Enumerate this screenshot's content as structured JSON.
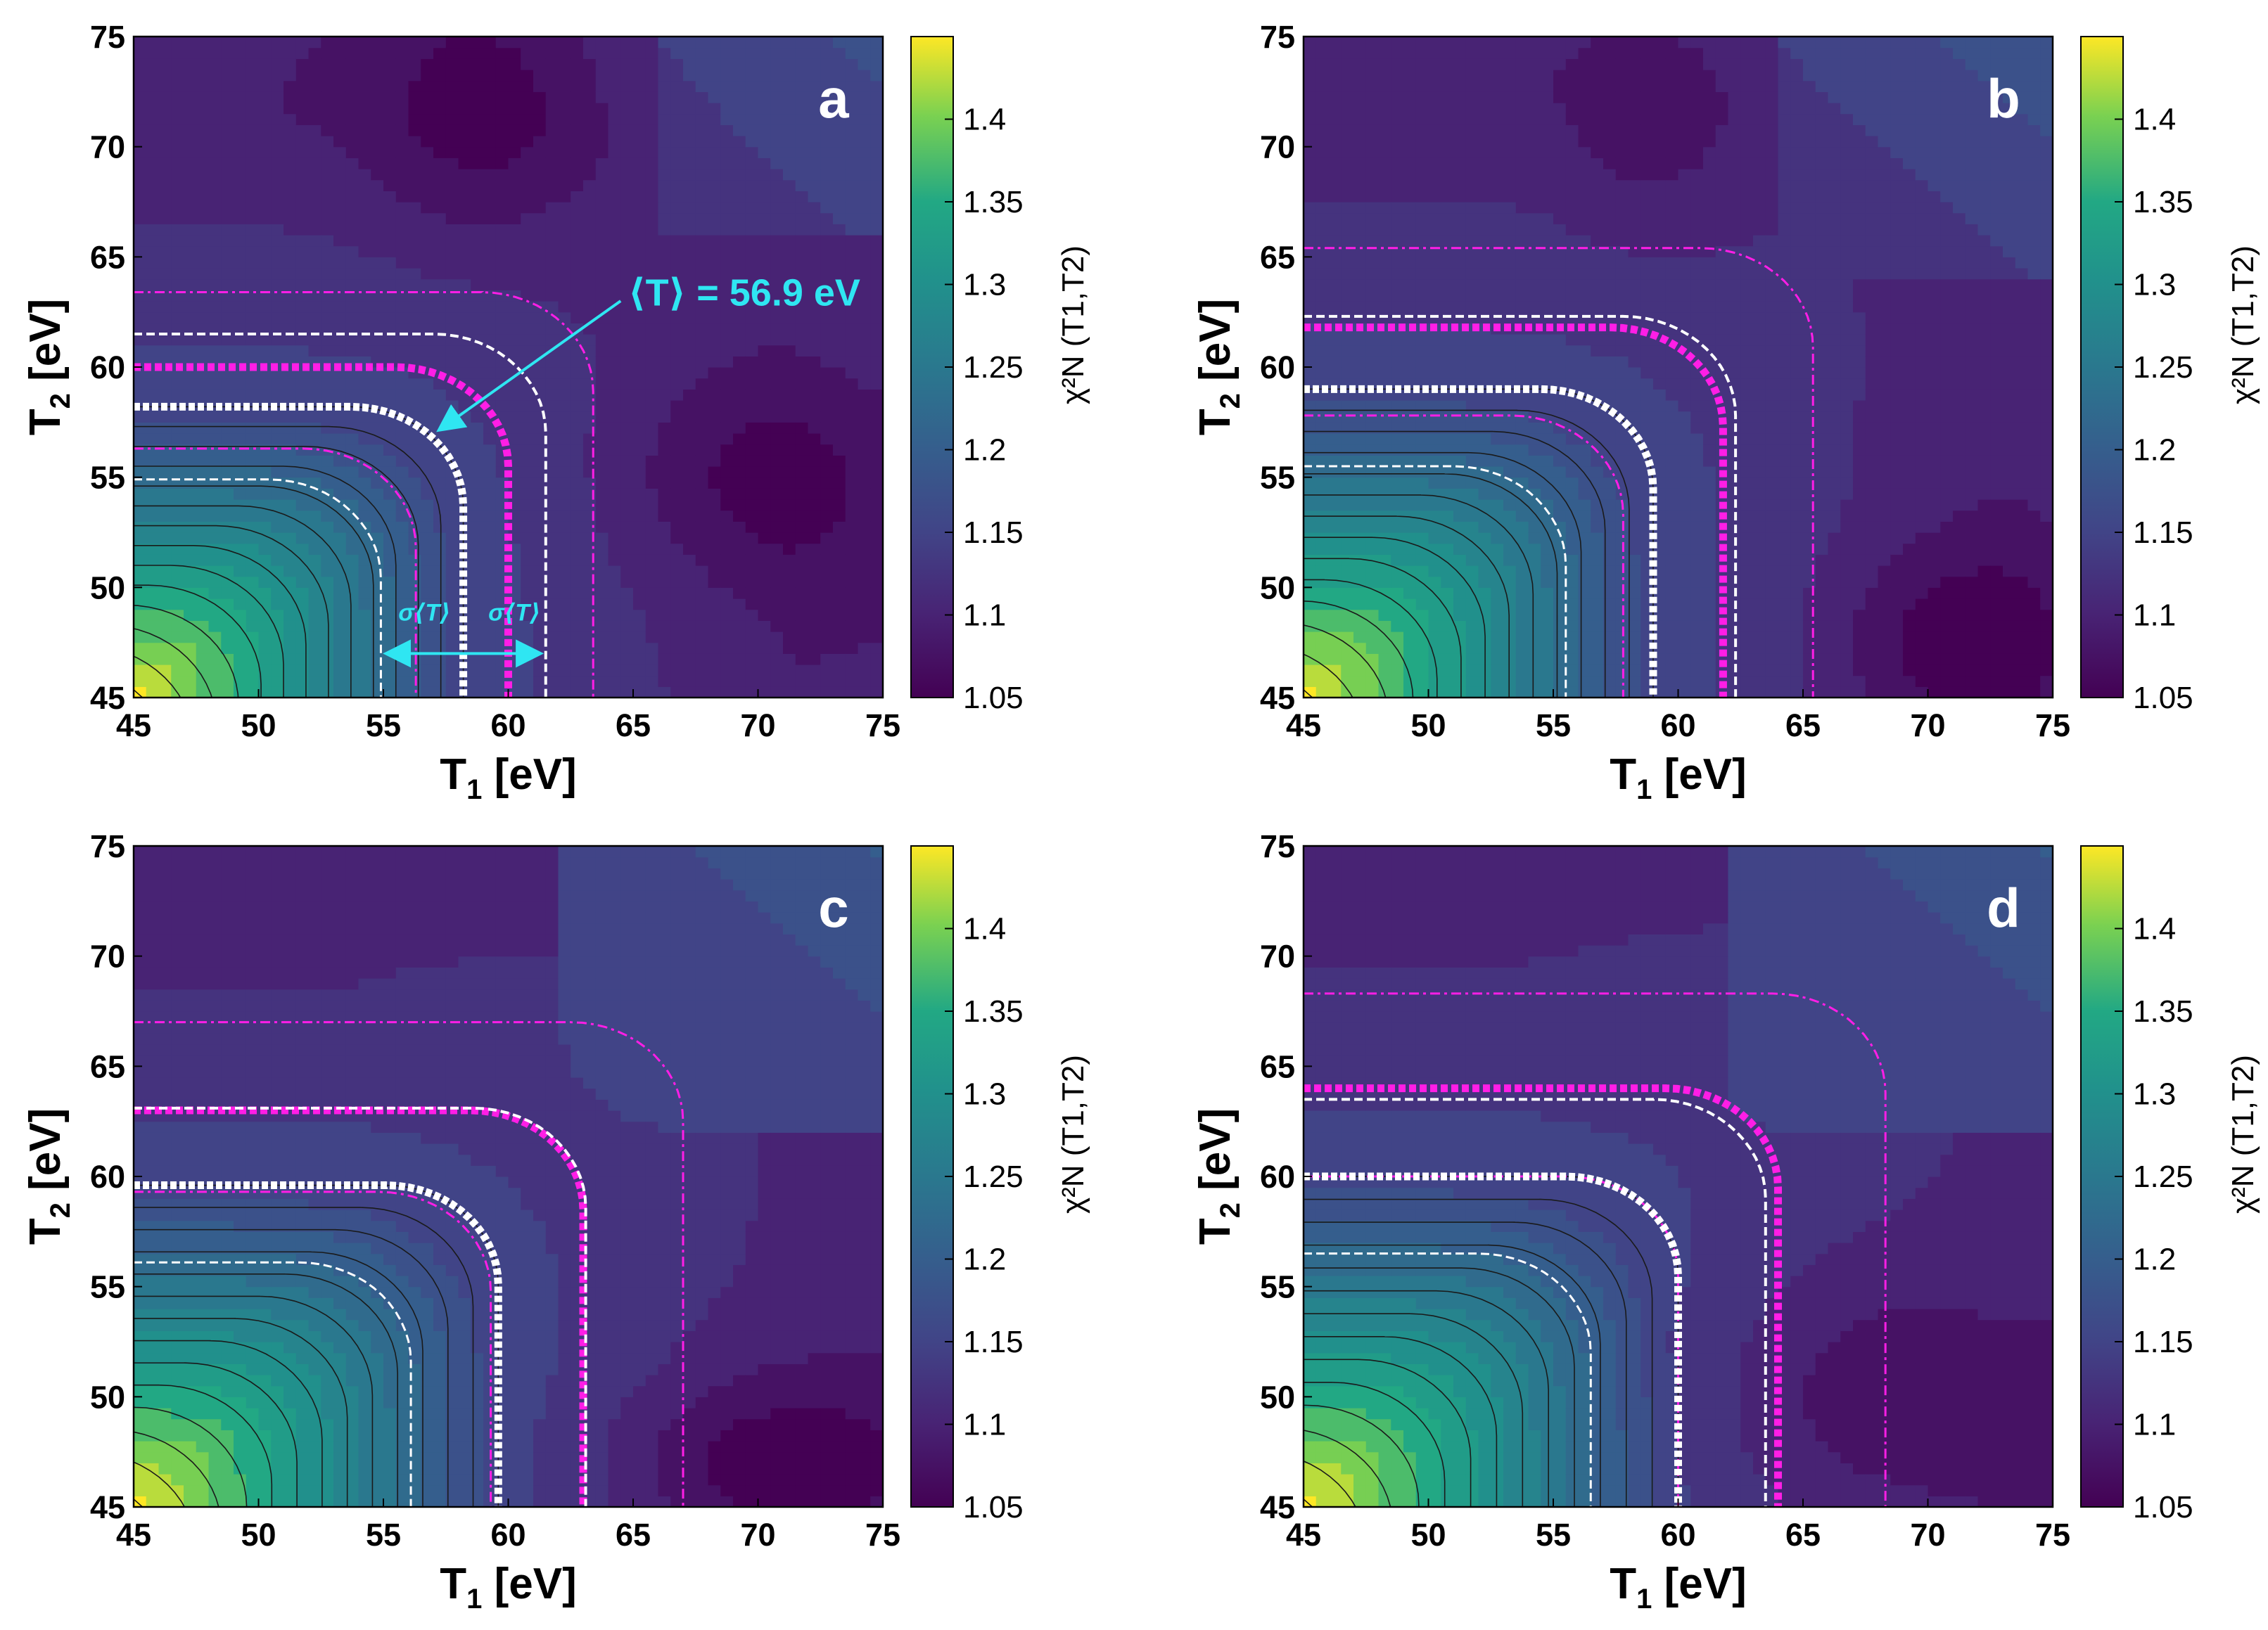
{
  "chart_data": [
    {
      "type": "contour",
      "panel_label": "a",
      "xlabel": "T",
      "xlabel_sub": "1",
      "xlabel_unit": " [eV]",
      "ylabel": "T",
      "ylabel_sub": "2",
      "ylabel_unit": " [eV]",
      "xlim": [
        45,
        75
      ],
      "ylim": [
        45,
        75
      ],
      "xticks": [
        "45",
        "50",
        "55",
        "60",
        "65",
        "70",
        "75"
      ],
      "yticks": [
        "45",
        "50",
        "55",
        "60",
        "65",
        "70",
        "75"
      ],
      "colorbar": {
        "label": "χ²N (T1,T2)",
        "range": [
          1.05,
          1.45
        ],
        "ticks": [
          "1.05",
          "1.1",
          "1.15",
          "1.2",
          "1.25",
          "1.3",
          "1.35",
          "1.4"
        ]
      },
      "minimum_region": "upper-middle, T1≈55-62, T2≈65-75",
      "isolines": {
        "white_mean": 58.2,
        "white_low": 54.9,
        "white_high": 61.5,
        "magenta_mean": 60.0,
        "magenta_low": 56.3,
        "magenta_high": 63.4
      },
      "annotation": "⟨T⟩ = 56.9 eV",
      "sigma_label": "σ⟨T⟩"
    },
    {
      "type": "contour",
      "panel_label": "b",
      "xlabel": "T",
      "xlabel_sub": "1",
      "xlabel_unit": " [eV]",
      "ylabel": "T",
      "ylabel_sub": "2",
      "ylabel_unit": " [eV]",
      "xlim": [
        45,
        75
      ],
      "ylim": [
        45,
        75
      ],
      "xticks": [
        "45",
        "50",
        "55",
        "60",
        "65",
        "70",
        "75"
      ],
      "yticks": [
        "45",
        "50",
        "55",
        "60",
        "65",
        "70",
        "75"
      ],
      "colorbar": {
        "label": "χ²N (T1,T2)",
        "range": [
          1.05,
          1.45
        ],
        "ticks": [
          "1.05",
          "1.1",
          "1.15",
          "1.2",
          "1.25",
          "1.3",
          "1.35",
          "1.4"
        ]
      },
      "minimum_region": "lower-right, T1≈67-75, T2≈45-52",
      "isolines": {
        "white_mean": 59.0,
        "white_low": 55.5,
        "white_high": 62.3,
        "magenta_mean": 61.8,
        "magenta_low": 57.8,
        "magenta_high": 65.4
      }
    },
    {
      "type": "contour",
      "panel_label": "c",
      "xlabel": "T",
      "xlabel_sub": "1",
      "xlabel_unit": " [eV]",
      "ylabel": "T",
      "ylabel_sub": "2",
      "ylabel_unit": " [eV]",
      "xlim": [
        45,
        75
      ],
      "ylim": [
        45,
        75
      ],
      "xticks": [
        "45",
        "50",
        "55",
        "60",
        "65",
        "70",
        "75"
      ],
      "yticks": [
        "45",
        "50",
        "55",
        "60",
        "65",
        "70",
        "75"
      ],
      "colorbar": {
        "label": "χ²N (T1,T2)",
        "range": [
          1.05,
          1.45
        ],
        "ticks": [
          "1.05",
          "1.1",
          "1.15",
          "1.2",
          "1.25",
          "1.3",
          "1.35",
          "1.4"
        ]
      },
      "minimum_region": "lower-right, T1≈65-75, T2≈45-50",
      "isolines": {
        "white_mean": 59.6,
        "white_low": 56.1,
        "white_high": 63.1,
        "magenta_mean": 63.0,
        "magenta_low": 59.3,
        "magenta_high": 67.0
      }
    },
    {
      "type": "contour",
      "panel_label": "d",
      "xlabel": "T",
      "xlabel_sub": "1",
      "xlabel_unit": " [eV]",
      "ylabel": "T",
      "ylabel_sub": "2",
      "ylabel_unit": " [eV]",
      "xlim": [
        45,
        75
      ],
      "ylim": [
        45,
        75
      ],
      "xticks": [
        "45",
        "50",
        "55",
        "60",
        "65",
        "70",
        "75"
      ],
      "yticks": [
        "45",
        "50",
        "55",
        "60",
        "65",
        "70",
        "75"
      ],
      "colorbar": {
        "label": "χ²N (T1,T2)",
        "range": [
          1.05,
          1.45
        ],
        "ticks": [
          "1.05",
          "1.1",
          "1.15",
          "1.2",
          "1.25",
          "1.3",
          "1.35",
          "1.4"
        ]
      },
      "minimum_region": "right, T1≈60-75, T2≈45-55",
      "isolines": {
        "white_mean": 60.0,
        "white_low": 56.5,
        "white_high": 63.5,
        "magenta_mean": 64.0,
        "magenta_low": 60.0,
        "magenta_high": 68.3
      }
    }
  ],
  "colors": {
    "white_isoline": "#ffffff",
    "magenta_isoline": "#ff1ee6",
    "annotation": "#2fe6f2"
  }
}
